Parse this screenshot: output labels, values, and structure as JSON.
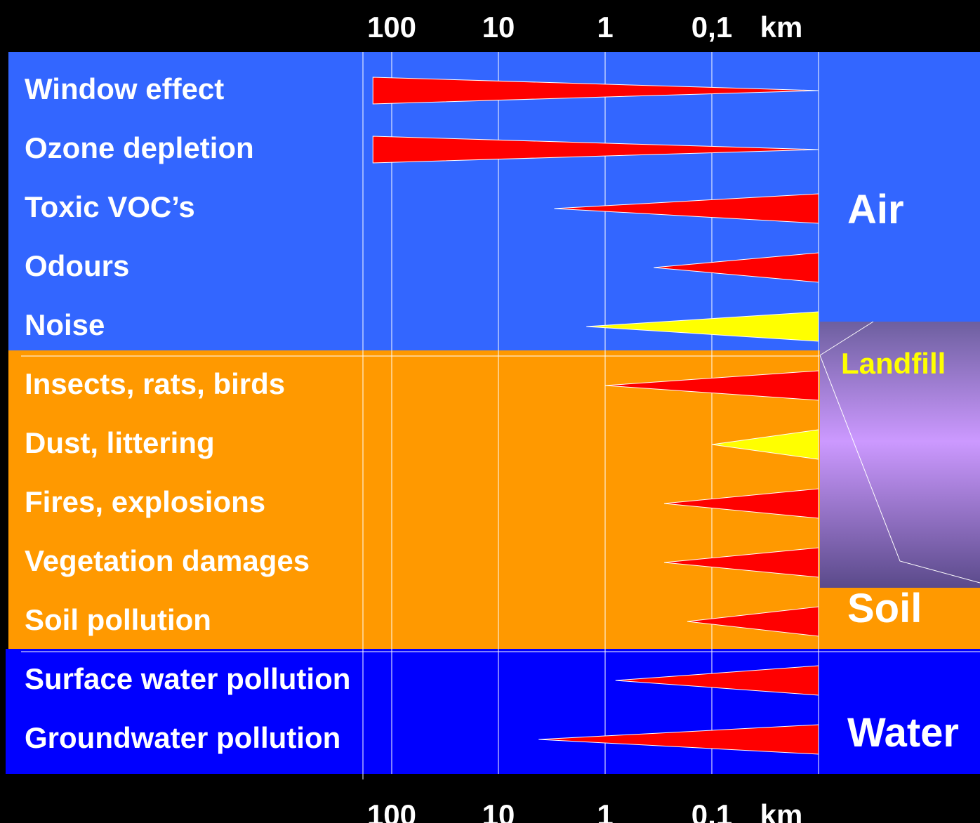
{
  "chart_data": {
    "type": "bar",
    "axis": {
      "ticks": [
        100,
        10,
        1,
        0.1
      ],
      "tick_labels": [
        "100",
        "10",
        "1",
        "0,1"
      ],
      "unit": "km",
      "scale": "log",
      "direction": "reversed"
    },
    "categories": [
      "Window effect",
      "Ozone depletion",
      "Toxic VOC’s",
      "Odours",
      "Noise",
      "Insects, rats, birds",
      "Dust, littering",
      "Fires, explosions",
      "Vegetation damages",
      "Soil pollution",
      "Surface water pollution",
      "Groundwater pollution"
    ],
    "series": [
      {
        "values": [
          150,
          150,
          3,
          0.35,
          1.5,
          1,
          0.1,
          0.28,
          0.28,
          0.17,
          0.8,
          4.2
        ],
        "colors": [
          "#ff0000",
          "#ff0000",
          "#ff0000",
          "#ff0000",
          "#ffff00",
          "#ff0000",
          "#ffff00",
          "#ff0000",
          "#ff0000",
          "#ff0000",
          "#ff0000",
          "#ff0000"
        ],
        "shape": [
          "wide-left",
          "wide-left",
          "wide-right",
          "wide-right",
          "wide-right",
          "wide-right",
          "wide-right",
          "wide-right",
          "wide-right",
          "wide-right",
          "wide-right",
          "wide-right"
        ]
      }
    ],
    "zones": [
      {
        "label": "Air",
        "color": "#3366ff"
      },
      {
        "label": "Soil",
        "color": "#ff9900"
      },
      {
        "label": "Water",
        "color": "#0000ff"
      }
    ],
    "source_label": "Landfill",
    "colors": {
      "red": "#ff0000",
      "yellow": "#ffff00",
      "air": "#3366ff",
      "soil": "#ff9900",
      "water": "#0000ff",
      "landfill_label": "#ffff00",
      "landfill_top": "#6d5f9f",
      "landfill_mid": "#cc99ff"
    },
    "grid": true
  }
}
